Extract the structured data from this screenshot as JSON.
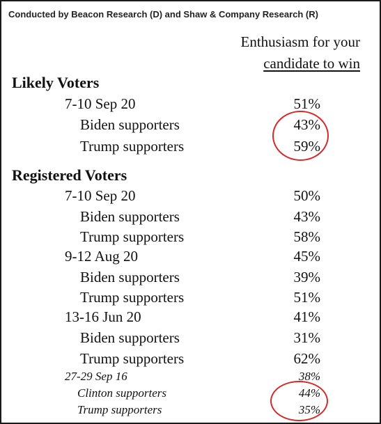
{
  "source": "Conducted by Beacon Research (D) and Shaw & Company Research (R)",
  "column_header": {
    "line1": "Enthusiasm for your",
    "line2": "candidate to win"
  },
  "likely": {
    "header": "Likely Voters",
    "date": "7-10 Sep 20",
    "date_value": "51%",
    "biden_label": "Biden supporters",
    "biden_value": "43%",
    "trump_label": "Trump supporters",
    "trump_value": "59%"
  },
  "registered": {
    "header": "Registered Voters",
    "groups": [
      {
        "date": "7-10 Sep 20",
        "value": "50%",
        "biden_label": "Biden supporters",
        "biden_value": "43%",
        "trump_label": "Trump supporters",
        "trump_value": "58%"
      },
      {
        "date": "9-12 Aug 20",
        "value": "45%",
        "biden_label": "Biden supporters",
        "biden_value": "39%",
        "trump_label": "Trump supporters",
        "trump_value": "51%"
      },
      {
        "date": "13-16 Jun 20",
        "value": "41%",
        "biden_label": "Biden supporters",
        "biden_value": "31%",
        "trump_label": "Trump supporters",
        "trump_value": "62%"
      }
    ],
    "old": {
      "date": "27-29 Sep 16",
      "value": "38%",
      "clinton_label": "Clinton supporters",
      "clinton_value": "44%",
      "trump_label": "Trump supporters",
      "trump_value": "35%"
    }
  },
  "colors": {
    "annotation_circle": "#d42a2a",
    "text": "#111111"
  }
}
